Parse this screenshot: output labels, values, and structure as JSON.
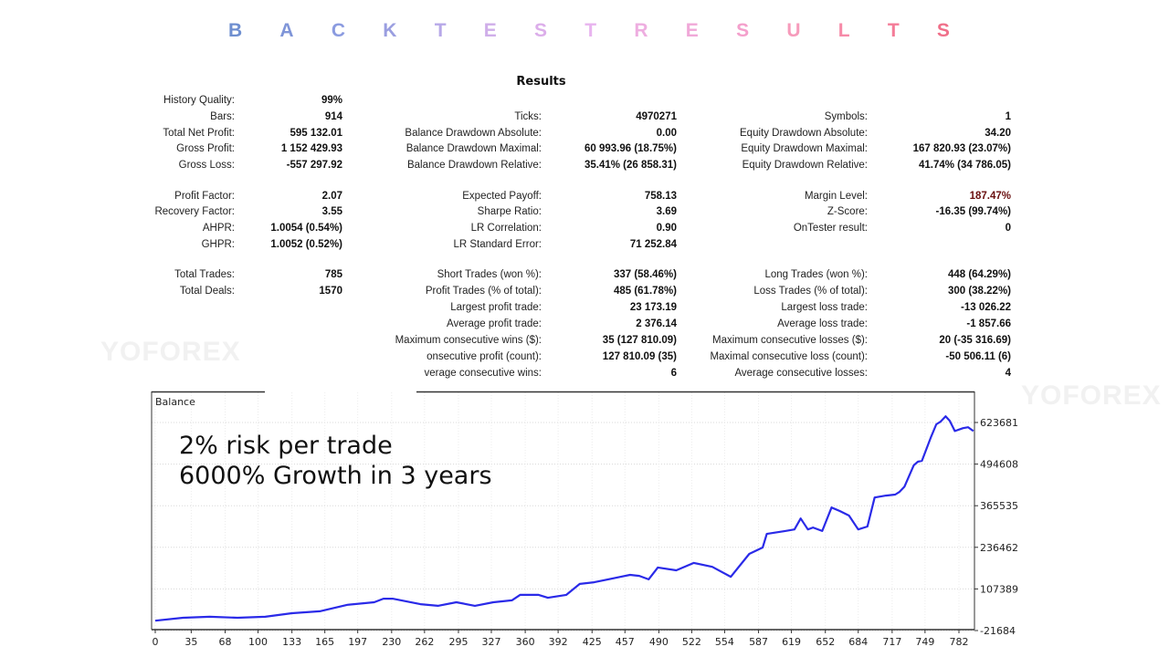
{
  "header": {
    "title_letters": [
      "B",
      "A",
      "C",
      "K",
      "T",
      "E",
      "S",
      "T",
      "R",
      "E",
      "S",
      "U",
      "L",
      "T",
      "S"
    ],
    "title_colors": [
      "#6f8fd0",
      "#7f95d8",
      "#8b9be0",
      "#9a9ee0",
      "#b7a8e8",
      "#cfaee9",
      "#dcaeea",
      "#e8b4ef",
      "#eeaee0",
      "#f0a8d8",
      "#f4a0cc",
      "#f69bbb",
      "#f68aa8",
      "#f47c98",
      "#f0708a"
    ]
  },
  "watermark": "YOFOREX",
  "results": {
    "title": "Results",
    "columns": [
      [
        {
          "label": "History Quality:",
          "value": "99%"
        },
        {
          "label": "Bars:",
          "value": "914"
        },
        {
          "label": "Total Net Profit:",
          "value": "595 132.01"
        },
        {
          "label": "Gross Profit:",
          "value": "1 152 429.93"
        },
        {
          "label": "Gross Loss:",
          "value": "-557 297.92"
        },
        {
          "label": "Profit Factor:",
          "value": "2.07"
        },
        {
          "label": "Recovery Factor:",
          "value": "3.55"
        },
        {
          "label": "AHPR:",
          "value": "1.0054 (0.54%)"
        },
        {
          "label": "GHPR:",
          "value": "1.0052 (0.52%)"
        },
        {
          "label": "Total Trades:",
          "value": "785"
        },
        {
          "label": "Total Deals:",
          "value": "1570"
        },
        null,
        null,
        null,
        null,
        null
      ],
      [
        null,
        {
          "label": "Ticks:",
          "value": "4970271"
        },
        {
          "label": "Balance Drawdown Absolute:",
          "value": "0.00"
        },
        {
          "label": "Balance Drawdown Maximal:",
          "value": "60 993.96 (18.75%)"
        },
        {
          "label": "Balance Drawdown Relative:",
          "value": "35.41% (26 858.31)"
        },
        {
          "label": "Expected Payoff:",
          "value": "758.13"
        },
        {
          "label": "Sharpe Ratio:",
          "value": "3.69"
        },
        {
          "label": "LR Correlation:",
          "value": "0.90"
        },
        {
          "label": "LR Standard Error:",
          "value": "71 252.84"
        },
        {
          "label": "Short Trades (won %):",
          "value": "337 (58.46%)"
        },
        {
          "label": "Profit Trades (% of total):",
          "value": "485 (61.78%)"
        },
        {
          "label": "Largest profit trade:",
          "value": "23 173.19"
        },
        {
          "label": "Average profit trade:",
          "value": "2 376.14"
        },
        {
          "label": "Maximum consecutive wins ($):",
          "value": "35 (127 810.09)"
        },
        {
          "label": "onsecutive profit (count):",
          "value": "127 810.09 (35)"
        },
        {
          "label": "verage consecutive wins:",
          "value": "6"
        }
      ],
      [
        null,
        {
          "label": "Symbols:",
          "value": "1"
        },
        {
          "label": "Equity Drawdown Absolute:",
          "value": "34.20"
        },
        {
          "label": "Equity Drawdown Maximal:",
          "value": "167 820.93 (23.07%)"
        },
        {
          "label": "Equity Drawdown Relative:",
          "value": "41.74% (34 786.05)"
        },
        {
          "label": "Margin Level:",
          "value": "187.47%"
        },
        {
          "label": "Z-Score:",
          "value": "-16.35 (99.74%)"
        },
        {
          "label": "OnTester result:",
          "value": "0"
        },
        null,
        {
          "label": "Long Trades (won %):",
          "value": "448 (64.29%)"
        },
        {
          "label": "Loss Trades (% of total):",
          "value": "300 (38.22%)"
        },
        {
          "label": "Largest loss trade:",
          "value": "-13 026.22"
        },
        {
          "label": "Average loss trade:",
          "value": "-1 857.66"
        },
        {
          "label": "Maximum consecutive losses ($):",
          "value": "20 (-35 316.69)"
        },
        {
          "label": "Maximal consecutive loss (count):",
          "value": "-50 506.11 (6)"
        },
        {
          "label": "Average consecutive losses:",
          "value": "4"
        }
      ]
    ]
  },
  "overlay": {
    "line1": "2% risk per trade",
    "line2": "6000% Growth in 3 years"
  },
  "chart_data": {
    "type": "line",
    "title": "Balance",
    "line_color": "#2a2ae8",
    "grid": true,
    "x_ticks": [
      0,
      35,
      68,
      100,
      133,
      165,
      197,
      230,
      262,
      295,
      327,
      360,
      392,
      425,
      457,
      490,
      522,
      554,
      587,
      619,
      652,
      684,
      717,
      749,
      782
    ],
    "y_ticks": [
      -21684,
      107389,
      236462,
      365535,
      494608,
      623681
    ],
    "series": [
      {
        "x": [
          0,
          27,
          53,
          80,
          107,
          133,
          160,
          187,
          213,
          222,
          231,
          258,
          275,
          293,
          311,
          329,
          347,
          355,
          373,
          382,
          400,
          413,
          427,
          453,
          462,
          471,
          480,
          489,
          507,
          524,
          542,
          560,
          578,
          591,
          595,
          613,
          622,
          628,
          635,
          640,
          649,
          658,
          666,
          675,
          684,
          693,
          700,
          711,
          720,
          724,
          729,
          738,
          742,
          746,
          755,
          760,
          764,
          769,
          773,
          778,
          786,
          791,
          796
        ],
        "y": [
          9000,
          18000,
          21000,
          18000,
          21000,
          32000,
          38000,
          58000,
          66000,
          77000,
          77000,
          60000,
          55000,
          66000,
          55000,
          66000,
          72000,
          89000,
          89000,
          80000,
          89000,
          123000,
          128000,
          145000,
          151000,
          148000,
          137000,
          174000,
          165000,
          188000,
          176000,
          145000,
          216000,
          236000,
          278000,
          287000,
          292000,
          326000,
          292000,
          298000,
          287000,
          360000,
          349000,
          335000,
          292000,
          301000,
          391000,
          397000,
          400000,
          408000,
          425000,
          491000,
          502000,
          505000,
          580000,
          618000,
          626000,
          643000,
          629000,
          597000,
          606000,
          609000,
          597000
        ]
      }
    ]
  }
}
